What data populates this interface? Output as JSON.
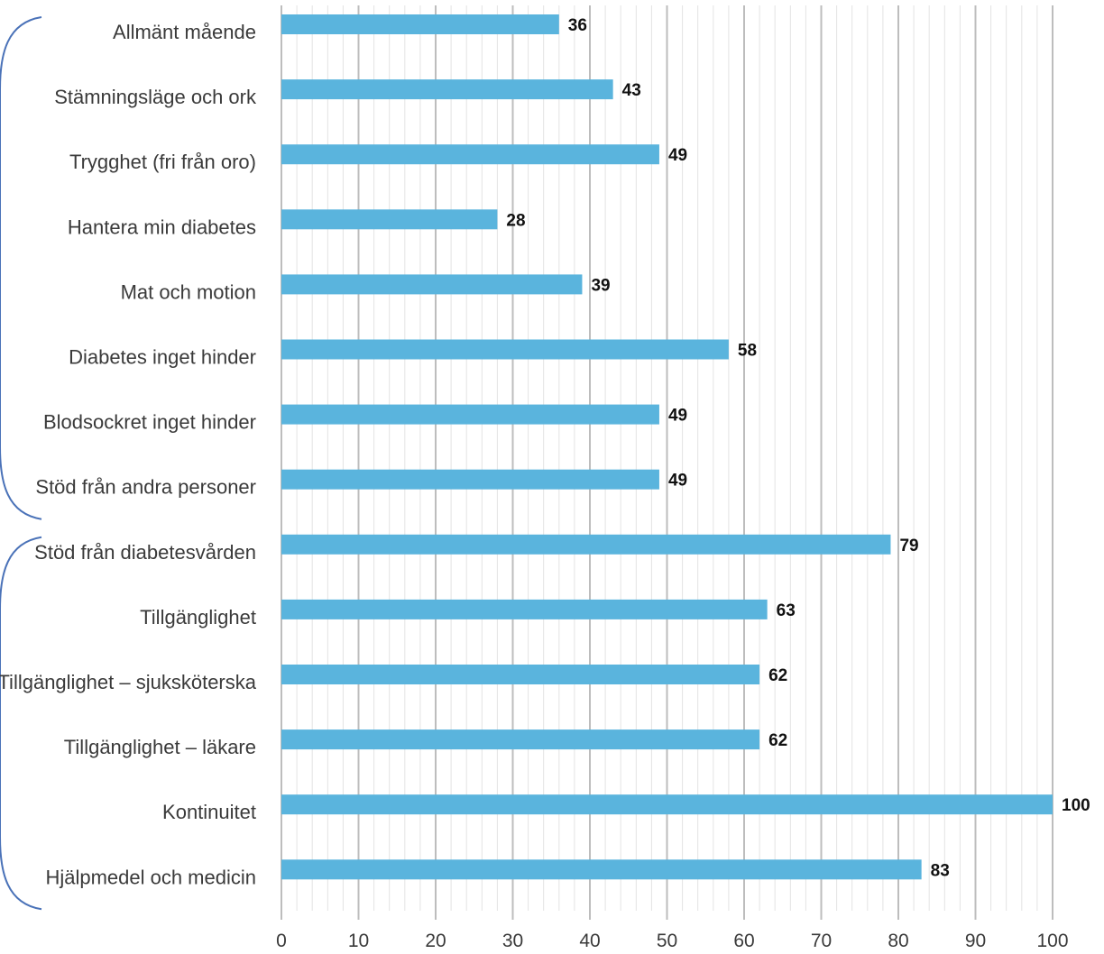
{
  "chart_data": {
    "type": "bar",
    "orientation": "horizontal",
    "categories": [
      "Allmänt mående",
      "Stämningsläge och ork",
      "Trygghet (fri från oro)",
      "Hantera min diabetes",
      "Mat och motion",
      "Diabetes inget hinder",
      "Blodsockret inget hinder",
      "Stöd från andra personer",
      "Stöd från diabetesvården",
      "Tillgänglighet",
      "Tillgänglighet – sjuksköterska",
      "Tillgänglighet – läkare",
      "Kontinuitet",
      "Hjälpmedel och medicin"
    ],
    "values": [
      36,
      43,
      49,
      28,
      39,
      58,
      49,
      49,
      79,
      63,
      62,
      62,
      100,
      83
    ],
    "value_labels": [
      "36",
      "43",
      "49",
      "28",
      "39",
      "58",
      "49",
      "49",
      "79",
      "63",
      "62",
      "62",
      "100",
      "83"
    ],
    "xlim": [
      0,
      100
    ],
    "x_ticks": [
      0,
      10,
      20,
      30,
      40,
      50,
      60,
      70,
      80,
      90,
      100
    ],
    "x_tick_labels": [
      "0",
      "10",
      "20",
      "30",
      "40",
      "50",
      "60",
      "70",
      "80",
      "90",
      "100"
    ],
    "grid": true,
    "bar_color": "#5ab4dd",
    "grid_major_color": "#bdbdbd",
    "grid_minor_color": "#e3e3e3",
    "bracket_color": "#4a72b8",
    "groups": [
      {
        "from": "Allmänt mående",
        "to": "Stöd från andra personer"
      },
      {
        "from": "Stöd från diabetesvården",
        "to": "Hjälpmedel och medicin"
      }
    ]
  }
}
